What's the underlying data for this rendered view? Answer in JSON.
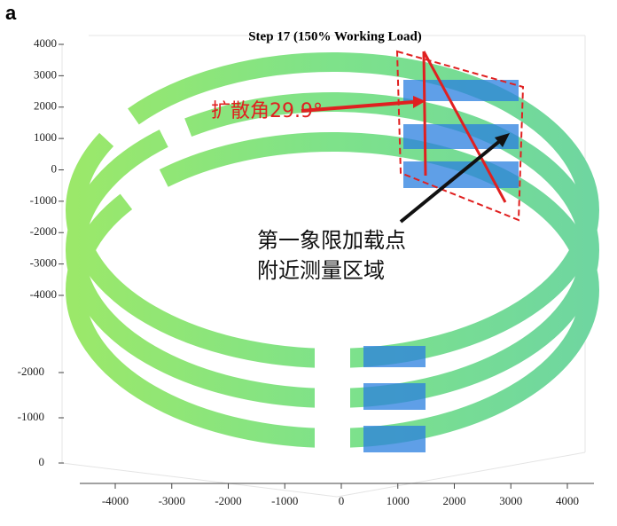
{
  "chart_data": {
    "type": "ring3d",
    "panel_label": "a",
    "title": "Step 17 (150% Working Load)",
    "annotations": {
      "angle": "扩散角29.9°",
      "note_line1": "第一象限加载点",
      "note_line2": "附近测量区域"
    },
    "xlim": [
      -4000,
      4000
    ],
    "xticks": [
      -4000,
      -3000,
      -2000,
      -1000,
      0,
      1000,
      2000,
      3000,
      4000
    ],
    "ylim": [
      -4000,
      4000
    ],
    "yticks": [
      4000,
      3000,
      2000,
      1000,
      0,
      -1000,
      -2000,
      -3000,
      -4000
    ],
    "zlim": [
      -2000,
      0
    ],
    "zticks": [
      -2000,
      -1000,
      0
    ]
  }
}
